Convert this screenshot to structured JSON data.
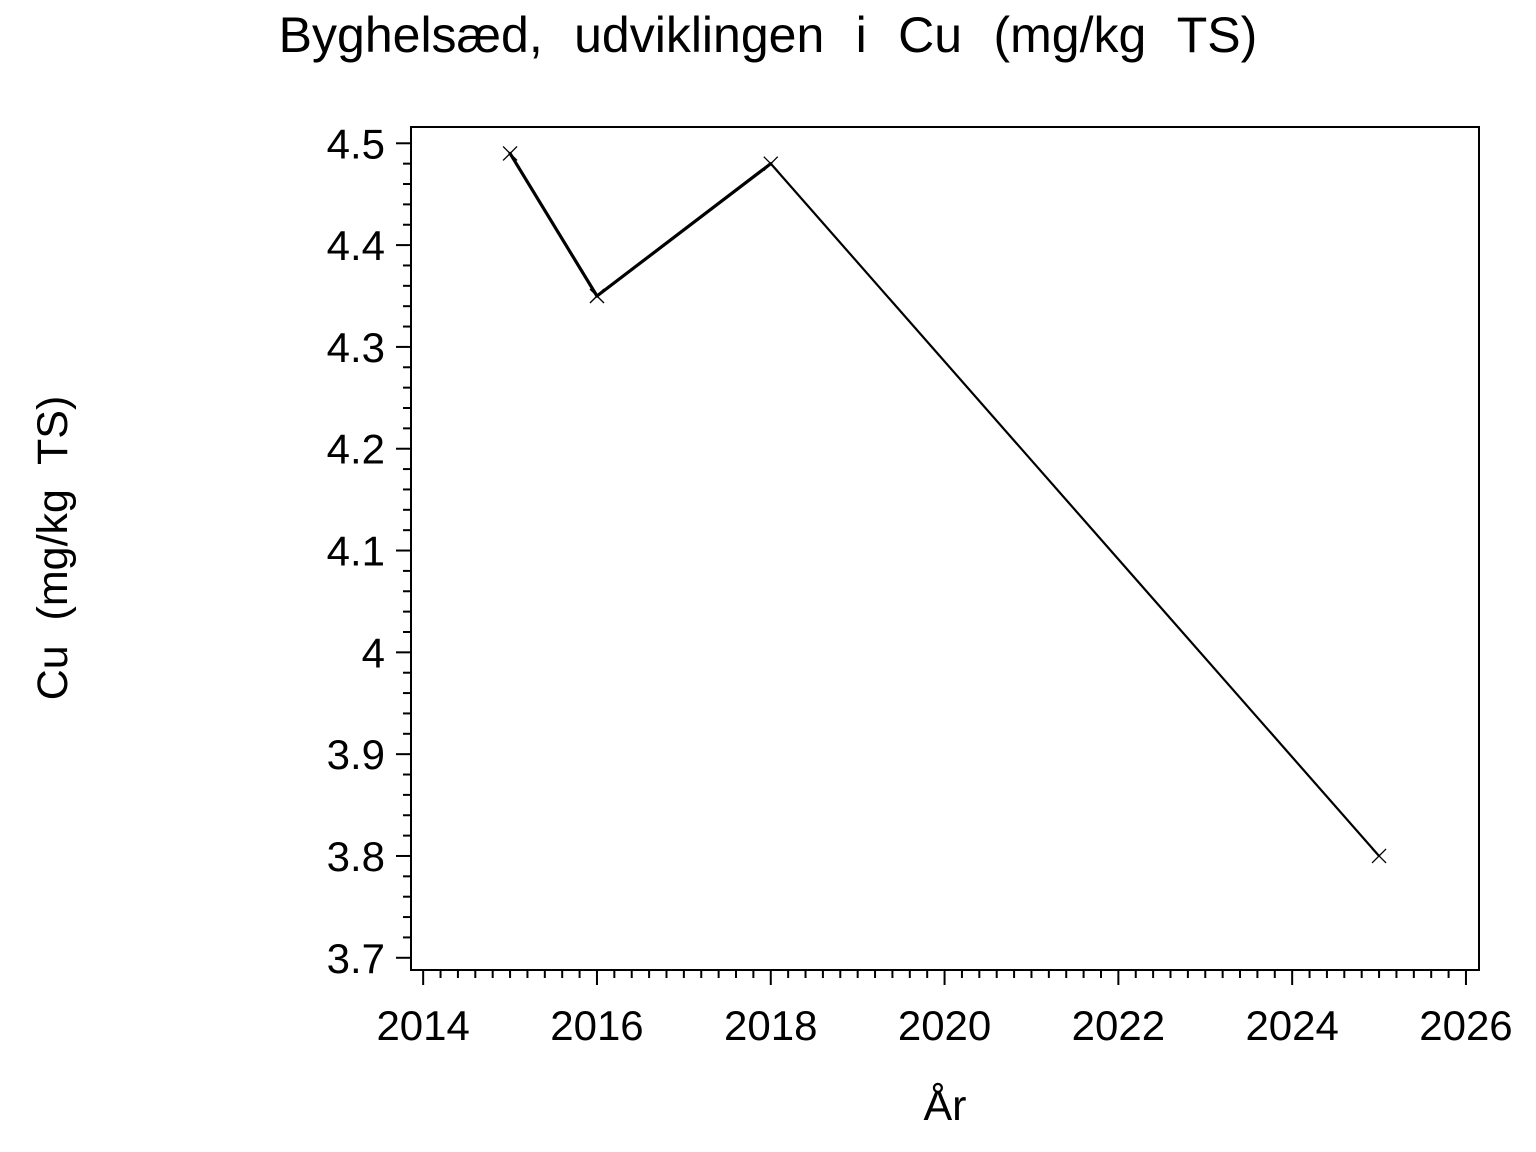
{
  "chart_data": {
    "type": "line",
    "title": "Byghelsæd, udviklingen i Cu (mg/kg TS)",
    "xlabel": "År",
    "ylabel": "Cu (mg/kg TS)",
    "series": [
      {
        "name": "Cu",
        "x": [
          2015,
          2016,
          2018,
          2025
        ],
        "y": [
          4.49,
          4.35,
          4.48,
          3.8
        ],
        "marker": "x",
        "color": "#000000",
        "segment_widths": [
          3.2,
          3.2,
          2.2
        ]
      }
    ],
    "xlim": [
      2013.86,
      2026.15
    ],
    "ylim": [
      3.688,
      4.516
    ],
    "x_major_ticks": [
      2014,
      2016,
      2018,
      2020,
      2022,
      2024,
      2026
    ],
    "x_tick_labels": [
      "2014",
      "2016",
      "2018",
      "2020",
      "2022",
      "2024",
      "2026"
    ],
    "x_minor_step": 0.2,
    "y_major_ticks": [
      3.7,
      3.8,
      3.9,
      4.0,
      4.1,
      4.2,
      4.3,
      4.4,
      4.5
    ],
    "y_tick_labels": [
      "3.7",
      "3.8",
      "3.9",
      "4",
      "4.1",
      "4.2",
      "4.3",
      "4.4",
      "4.5"
    ],
    "y_minor_step": 0.02,
    "grid": false,
    "legend": "none",
    "background_color": "#FFFFFF",
    "axis_color": "#000000",
    "marker_size": 7,
    "marker_stroke_width": 1.3
  }
}
